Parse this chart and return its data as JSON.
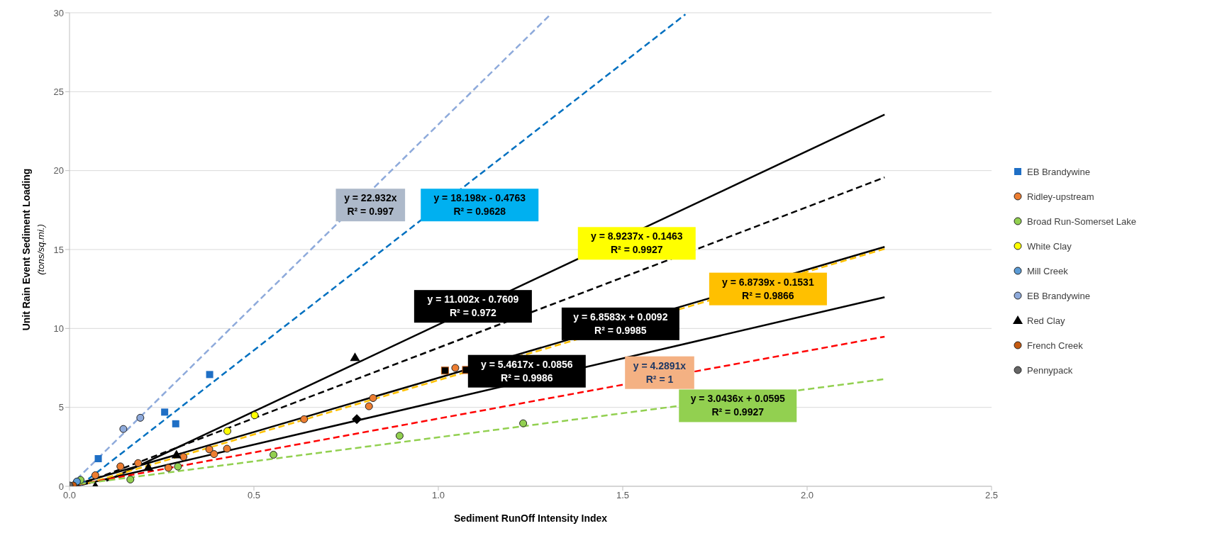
{
  "chart_data": {
    "type": "scatter",
    "xlabel": "Sediment  RunOff Intensity Index",
    "ylabel": "Unit Rain Event Sediment Loading\n(tons/sq.mi.)",
    "xlim": [
      0,
      2.5
    ],
    "xticks": [
      {
        "value": 0,
        "label": "0.0"
      },
      {
        "value": 0.5,
        "label": "0.5"
      },
      {
        "value": 1,
        "label": "1.0"
      },
      {
        "value": 1.5,
        "label": "1.5"
      },
      {
        "value": 2,
        "label": "2.0"
      },
      {
        "value": 2.5,
        "label": "2.5"
      }
    ],
    "ylim": [
      0,
      30
    ],
    "yticks": [
      0,
      5,
      10,
      15,
      20,
      25,
      30
    ],
    "grid": "y",
    "legend": "right",
    "series": [
      {
        "name": "EB Brandywine",
        "color": "#1f6fc5",
        "marker": "square",
        "x": [
          0.078,
          0.258,
          0.288,
          0.38
        ],
        "values": [
          1.75,
          4.7,
          3.96,
          7.08
        ]
      },
      {
        "name": "Ridley-upstream",
        "color": "#ed7d31",
        "marker": "circle",
        "x": [
          0.07,
          0.138,
          0.186,
          0.268,
          0.309,
          0.379,
          0.392,
          0.427,
          0.636,
          0.812,
          0.823,
          1.046
        ],
        "values": [
          0.7,
          1.26,
          1.47,
          1.17,
          1.86,
          2.34,
          2.04,
          2.38,
          4.25,
          5.07,
          5.59,
          7.5
        ]
      },
      {
        "name": "Broad Run-Somerset Lake",
        "color": "#92d050",
        "marker": "circle",
        "x": [
          0.03,
          0.165,
          0.294,
          0.553,
          0.895,
          1.23
        ],
        "values": [
          0.4,
          0.43,
          1.25,
          2.0,
          3.2,
          3.99
        ]
      },
      {
        "name": "White Clay",
        "color": "#ffff00",
        "marker": "circle",
        "x": [
          0.428,
          0.502
        ],
        "values": [
          3.5,
          4.5
        ]
      },
      {
        "name": "Mill Creek",
        "color": "#5b9bd5",
        "marker": "circle",
        "x": [
          0.02
        ],
        "values": [
          0.3
        ]
      },
      {
        "name": "EB Brandywine",
        "color": "#8eaadb",
        "marker": "circle",
        "x": [
          0.146,
          0.192
        ],
        "values": [
          3.63,
          4.34
        ]
      },
      {
        "name": "Red Clay",
        "color": "#000000",
        "marker": "triangle",
        "x": [
          0.07,
          0.214,
          0.29,
          0.774
        ],
        "values": [
          0,
          1.2,
          2.0,
          8.16
        ]
      },
      {
        "name": "French Creek",
        "color": "#c55a11",
        "marker": "circle",
        "x": [
          0.01
        ],
        "values": [
          0.05
        ]
      },
      {
        "name": "Pennypack",
        "color": "#666666",
        "marker": "circle",
        "x": [
          0
        ],
        "values": [
          0.05
        ]
      },
      {
        "color": "#000000",
        "marker": "square",
        "x": [
          1.018,
          1.075
        ],
        "values": [
          7.33,
          7.37
        ]
      },
      {
        "color": "#000000",
        "marker": "diamond",
        "x": [
          0.779
        ],
        "values": [
          4.25
        ]
      },
      {
        "type": "line",
        "color": "#8eaadb",
        "line_style": "dashed",
        "x": [
          0,
          1.3
        ],
        "values": [
          0,
          29.8
        ]
      },
      {
        "type": "line",
        "color": "#0070c0",
        "line_style": "dashed",
        "x": [
          0.03,
          1.67
        ],
        "values": [
          0.07,
          29.9
        ]
      },
      {
        "type": "line",
        "color": "#000000",
        "line_style": "solid",
        "x": [
          0.1,
          2.21
        ],
        "values": [
          0.34,
          23.55
        ]
      },
      {
        "type": "line",
        "color": "#000000",
        "line_style": "dashed",
        "x": [
          0.02,
          2.21
        ],
        "values": [
          0.03,
          19.57
        ]
      },
      {
        "type": "line",
        "color": "#ffc000",
        "line_style": "dashed",
        "x": [
          0.05,
          2.21
        ],
        "values": [
          0.19,
          15.04
        ]
      },
      {
        "type": "line",
        "color": "#000000",
        "line_style": "solid",
        "x": [
          0,
          2.21
        ],
        "values": [
          0.01,
          15.17
        ]
      },
      {
        "type": "line",
        "color": "#000000",
        "line_style": "solid",
        "x": [
          0.02,
          2.21
        ],
        "values": [
          0.02,
          11.98
        ]
      },
      {
        "type": "line",
        "color": "#ff0000",
        "line_style": "dashed",
        "x": [
          0,
          2.21
        ],
        "values": [
          0,
          9.48
        ]
      },
      {
        "type": "line",
        "color": "#92d050",
        "line_style": "dashed",
        "x": [
          0,
          2.21
        ],
        "values": [
          0.06,
          6.79
        ]
      }
    ],
    "annotations": [
      "y = 22.932x\nR² = 0.997",
      "y = 18.198x - 0.4763\nR² = 0.9628",
      "y = 11.002x - 0.7609\nR² = 0.972",
      "y = 8.9237x - 0.1463\nR² = 0.9927",
      "y = 6.8739x - 0.1531\nR² = 0.9866",
      "y = 6.8583x + 0.0092\nR² = 0.9985",
      "y = 5.4617x - 0.0856\nR² = 0.9986",
      "y = 4.2891x\nR² = 1",
      "y = 3.0436x + 0.0595\nR² = 0.9927"
    ]
  }
}
